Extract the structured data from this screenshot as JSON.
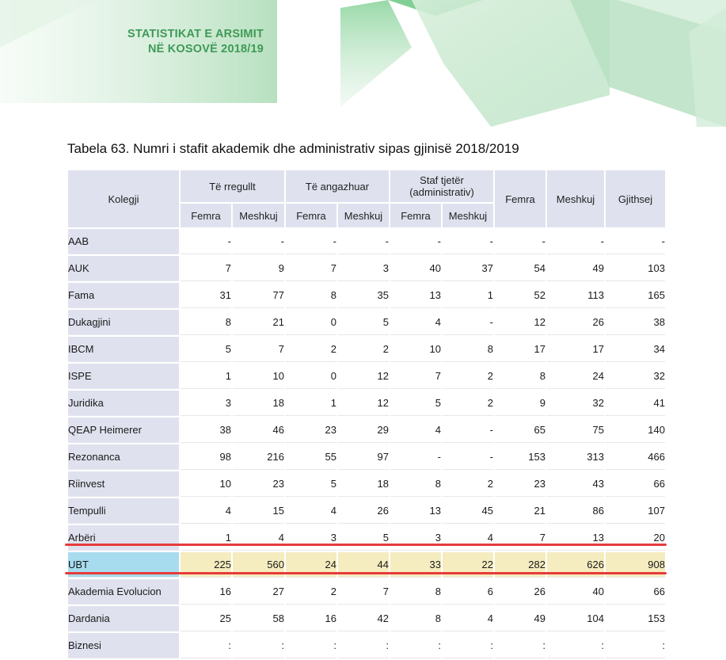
{
  "header": {
    "line1": "STATISTIKAT E ARSIMIT",
    "line2": "NË KOSOVË 2018/19",
    "accent_color": "#3f9a57"
  },
  "table": {
    "caption": "Tabela 63. Numri i stafit akademik dhe administrativ sipas gjinisë 2018/2019",
    "head": {
      "college": "Kolegji",
      "group_regular": "Të rregullt",
      "group_engaged": "Të angazhuar",
      "group_other_line1": "Staf tjetër",
      "group_other_line2": "(administrativ)",
      "female": "Femra",
      "male": "Meshkuj",
      "total": "Gjithsej"
    },
    "rows": [
      {
        "name": "AAB",
        "values": [
          "-",
          "-",
          "-",
          "-",
          "-",
          "-",
          "-",
          "-",
          "-"
        ]
      },
      {
        "name": "AUK",
        "values": [
          "7",
          "9",
          "7",
          "3",
          "40",
          "37",
          "54",
          "49",
          "103"
        ]
      },
      {
        "name": "Fama",
        "values": [
          "31",
          "77",
          "8",
          "35",
          "13",
          "1",
          "52",
          "113",
          "165"
        ]
      },
      {
        "name": "Dukagjini",
        "values": [
          "8",
          "21",
          "0",
          "5",
          "4",
          "-",
          "12",
          "26",
          "38"
        ]
      },
      {
        "name": "IBCM",
        "values": [
          "5",
          "7",
          "2",
          "2",
          "10",
          "8",
          "17",
          "17",
          "34"
        ]
      },
      {
        "name": "ISPE",
        "values": [
          "1",
          "10",
          "0",
          "12",
          "7",
          "2",
          "8",
          "24",
          "32"
        ]
      },
      {
        "name": "Juridika",
        "values": [
          "3",
          "18",
          "1",
          "12",
          "5",
          "2",
          "9",
          "32",
          "41"
        ]
      },
      {
        "name": "QEAP Heimerer",
        "values": [
          "38",
          "46",
          "23",
          "29",
          "4",
          "-",
          "65",
          "75",
          "140"
        ]
      },
      {
        "name": "Rezonanca",
        "values": [
          "98",
          "216",
          "55",
          "97",
          "-",
          "-",
          "153",
          "313",
          "466"
        ]
      },
      {
        "name": "Riinvest",
        "values": [
          "10",
          "23",
          "5",
          "18",
          "8",
          "2",
          "23",
          "43",
          "66"
        ]
      },
      {
        "name": "Tempulli",
        "values": [
          "4",
          "15",
          "4",
          "26",
          "13",
          "45",
          "21",
          "86",
          "107"
        ]
      },
      {
        "name": "Arbëri",
        "values": [
          "1",
          "4",
          "3",
          "5",
          "3",
          "4",
          "7",
          "13",
          "20"
        ]
      },
      {
        "name": "UBT",
        "values": [
          "225",
          "560",
          "24",
          "44",
          "33",
          "22",
          "282",
          "626",
          "908"
        ],
        "highlighted": true
      },
      {
        "name": "Akademia Evolucion",
        "values": [
          "16",
          "27",
          "2",
          "7",
          "8",
          "6",
          "26",
          "40",
          "66"
        ]
      },
      {
        "name": "Dardania",
        "values": [
          "25",
          "58",
          "16",
          "42",
          "8",
          "4",
          "49",
          "104",
          "153"
        ]
      },
      {
        "name": "Biznesi",
        "values": [
          ":",
          ":",
          ":",
          ":",
          ":",
          ":",
          ":",
          ":",
          ":"
        ]
      }
    ]
  },
  "colors": {
    "header_fill": "#dfe2ee",
    "highlight_row_fill": "#f5ecbf",
    "highlight_label_fill": "#a7dcee",
    "highlight_line": "#e63b3b"
  }
}
